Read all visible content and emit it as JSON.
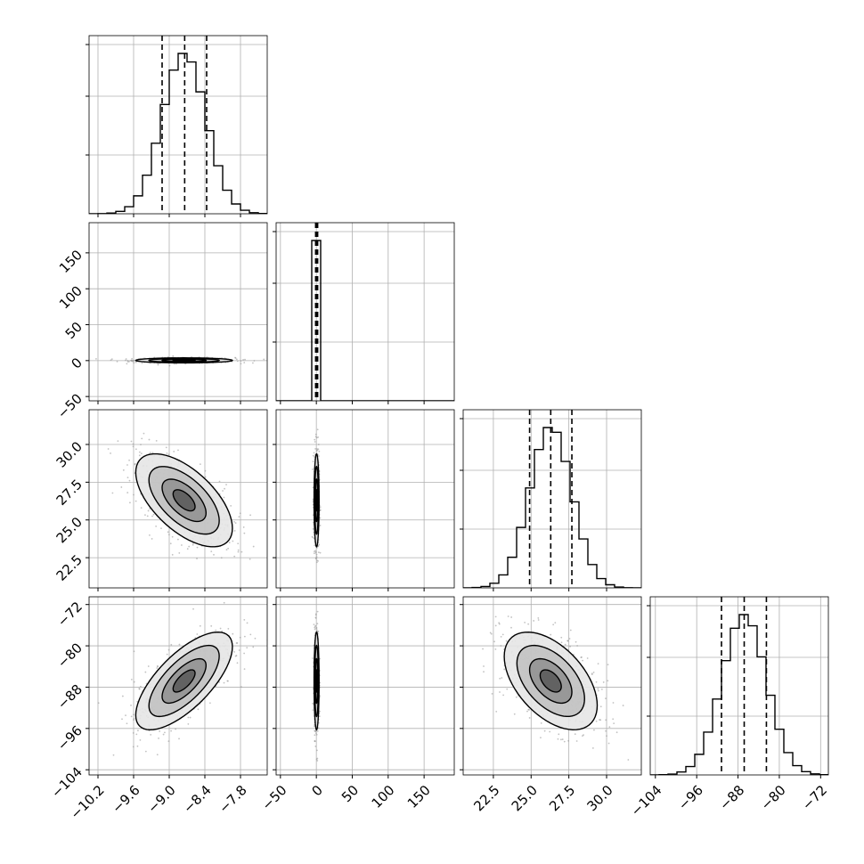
{
  "chart_data": {
    "type": "corner",
    "description_of_layout": "lower-triangular grid of 1D marginal histograms (diagonal) and 2D density contour panels (off-diagonal)",
    "grid": true,
    "quantile_lines_style": "dashed",
    "parameters": [
      {
        "key": "p0",
        "range": [
          -10.35,
          -7.35
        ],
        "ticks": [
          -10.2,
          -9.6,
          -9.0,
          -8.4,
          -7.8
        ],
        "tick_labels": [
          "−10.2",
          "−9.6",
          "−9.0",
          "−8.4",
          "−7.8"
        ],
        "mean": -8.75,
        "sd": 0.37,
        "quantiles": [
          -9.12,
          -8.74,
          -8.37
        ]
      },
      {
        "key": "p1",
        "range": [
          -56,
          192
        ],
        "ticks": [
          -50,
          0,
          50,
          100,
          150
        ],
        "tick_labels": [
          "−50",
          "0",
          "50",
          "100",
          "150"
        ],
        "mean": 0.3,
        "sd": 1.6,
        "quantiles": [
          -1.0,
          0.4,
          1.8
        ]
      },
      {
        "key": "p2",
        "range": [
          20.5,
          32.3
        ],
        "ticks": [
          22.5,
          25.0,
          27.5,
          30.0
        ],
        "tick_labels": [
          "22.5",
          "25.0",
          "27.5",
          "30.0"
        ],
        "mean": 26.3,
        "sd": 1.4,
        "quantiles": [
          24.9,
          26.3,
          27.7
        ]
      },
      {
        "key": "p3",
        "range": [
          -105,
          -70.5
        ],
        "ticks": [
          -104,
          -96,
          -88,
          -80,
          -72
        ],
        "tick_labels": [
          "−104",
          "−96",
          "−88",
          "−80",
          "−72"
        ],
        "mean": -86.8,
        "sd": 4.3,
        "quantiles": [
          -91.2,
          -86.8,
          -82.5
        ]
      }
    ],
    "correlations": [
      {
        "i": 0,
        "j": 1,
        "rho": 0.0
      },
      {
        "i": 0,
        "j": 2,
        "rho": -0.6
      },
      {
        "i": 1,
        "j": 2,
        "rho": 0.0
      },
      {
        "i": 0,
        "j": 3,
        "rho": 0.7
      },
      {
        "i": 1,
        "j": 3,
        "rho": 0.0
      },
      {
        "i": 2,
        "j": 3,
        "rho": -0.5
      }
    ]
  }
}
